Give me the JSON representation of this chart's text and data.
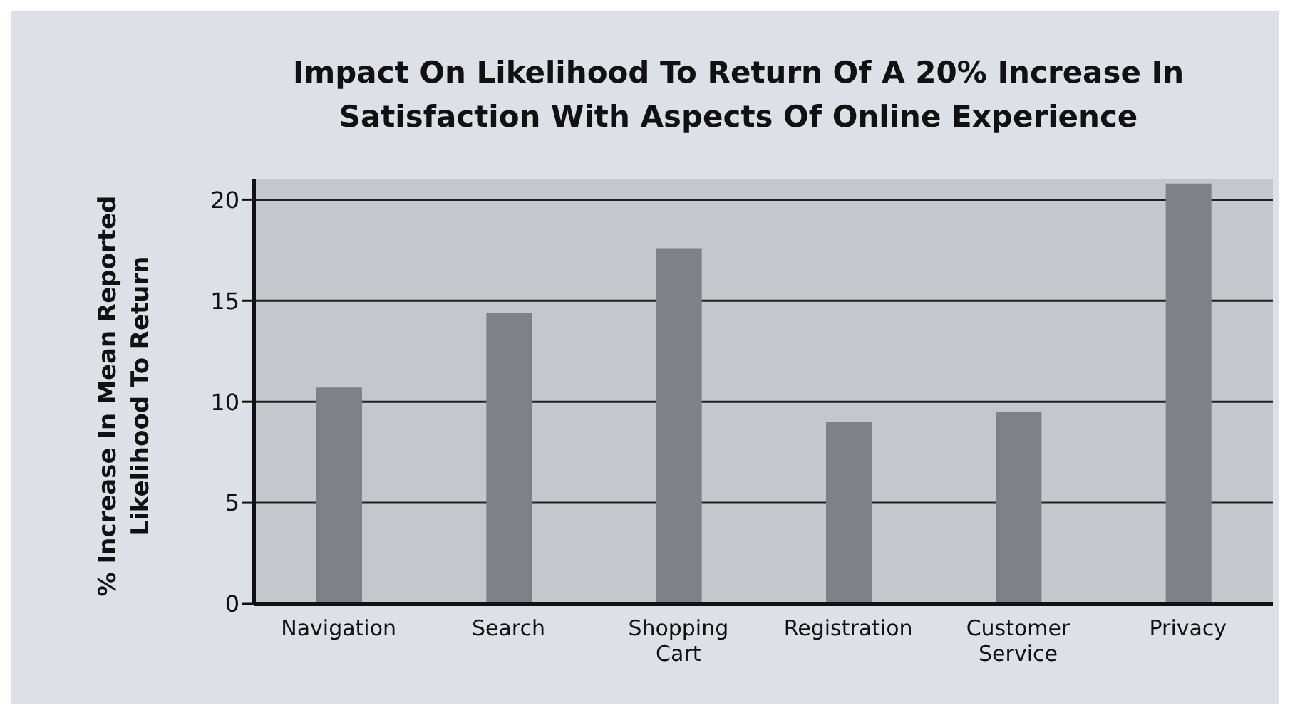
{
  "chart_data": {
    "type": "bar",
    "title": "Impact On Likelihood To Return Of A 20% Increase In Satisfaction With Aspects Of Online Experience",
    "ylabel": "% Increase In Mean Reported Likelihood To Return",
    "categories": [
      "Navigation",
      "Search",
      "Shopping Cart",
      "Registration",
      "Customer Service",
      "Privacy"
    ],
    "values": [
      10.7,
      14.4,
      17.6,
      9.0,
      9.5,
      20.8
    ],
    "color": "#7f8189",
    "ylim": [
      0,
      21
    ],
    "yticks": [
      0,
      5,
      10,
      15,
      20
    ],
    "grid": "y",
    "legend": false
  }
}
